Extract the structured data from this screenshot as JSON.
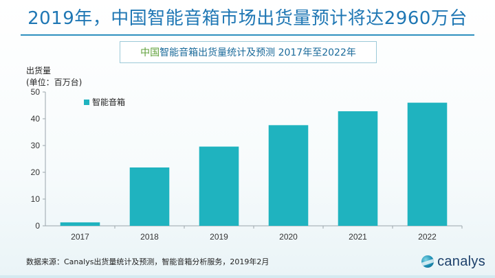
{
  "headline": "2019年，中国智能音箱市场出货量预计将达2960万台",
  "subtitle": {
    "accent": "中国",
    "text": "智能音箱出货量统计及预测 2017年至2022年"
  },
  "y_axis_label": {
    "line1": "出货量",
    "line2": "(单位：百万台)"
  },
  "footer": {
    "source": "数据来源：Canalys出货量统计及预测，智能音箱分析服务，2019年2月",
    "brand": "canalys"
  },
  "colors": {
    "bar": "#1fb3bf",
    "axis": "#9aa5ab",
    "headline": "#1f77b4"
  },
  "chart_data": {
    "type": "bar",
    "categories": [
      "2017",
      "2018",
      "2019",
      "2020",
      "2021",
      "2022"
    ],
    "series": [
      {
        "name": "智能音箱",
        "values": [
          1.3,
          21.8,
          29.6,
          37.6,
          42.8,
          46.0
        ]
      }
    ],
    "ylim": [
      0,
      50
    ],
    "yticks": [
      0,
      10,
      20,
      30,
      40,
      50
    ],
    "grid": false,
    "legend_position": "top-left"
  }
}
